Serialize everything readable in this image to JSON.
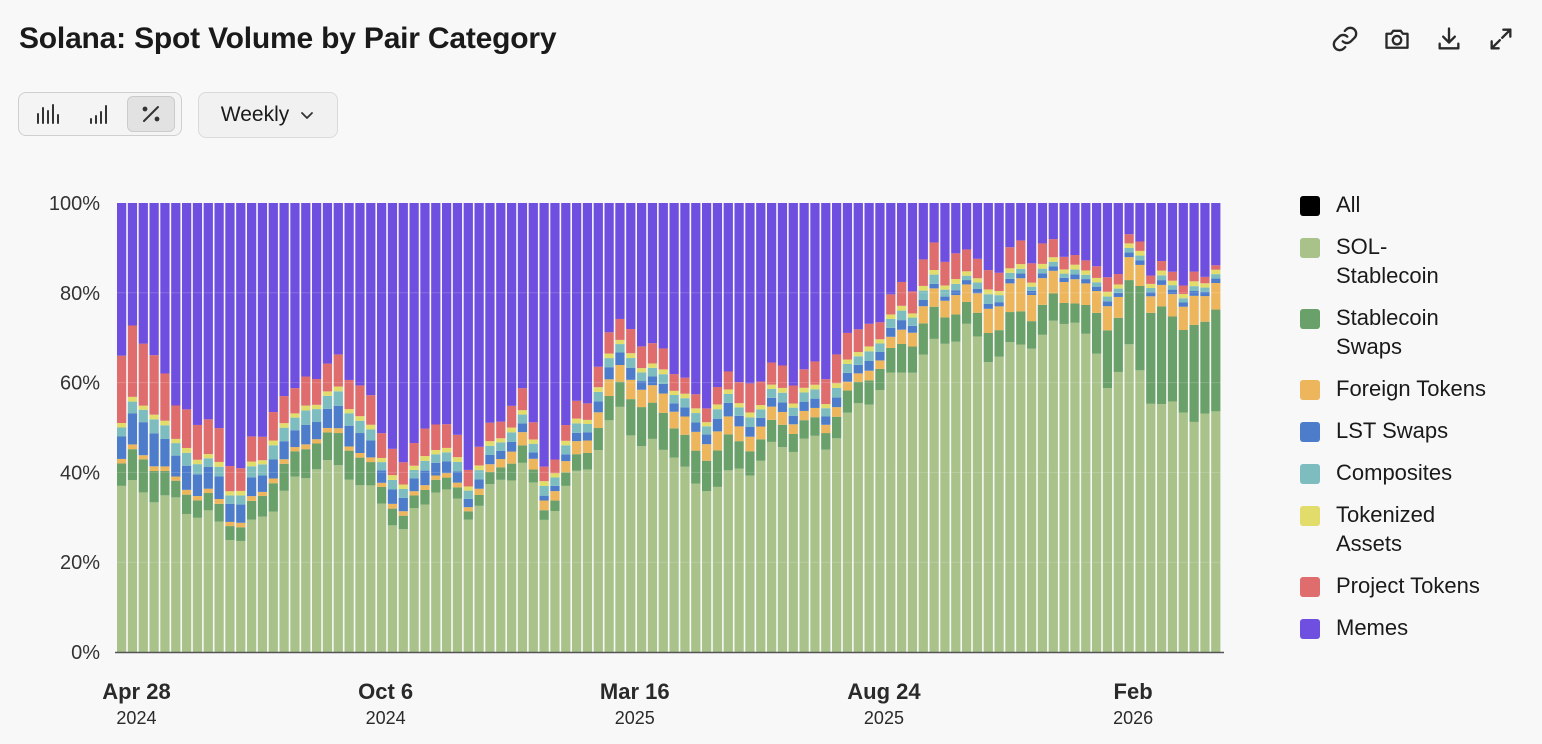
{
  "header": {
    "title": "Solana: Spot Volume by Pair Category",
    "actions": [
      {
        "name": "link-icon"
      },
      {
        "name": "camera-icon"
      },
      {
        "name": "download-icon"
      },
      {
        "name": "expand-icon"
      }
    ]
  },
  "controls": {
    "modes": [
      {
        "name": "bar-chart-icon",
        "active": false
      },
      {
        "name": "stacked-bar-icon",
        "active": false
      },
      {
        "name": "percent-icon",
        "active": true
      }
    ],
    "period_label": "Weekly"
  },
  "legend": [
    {
      "label": "All",
      "color": "#000000"
    },
    {
      "label": "SOL-Stablecoin",
      "color": "#a8c28a"
    },
    {
      "label": "Stablecoin Swaps",
      "color": "#6aa06a"
    },
    {
      "label": "Foreign Tokens",
      "color": "#edb65c"
    },
    {
      "label": "LST Swaps",
      "color": "#4d7ccb"
    },
    {
      "label": "Composites",
      "color": "#7dbdbf"
    },
    {
      "label": "Tokenized Assets",
      "color": "#e2dc6a"
    },
    {
      "label": "Project Tokens",
      "color": "#e06d6d"
    },
    {
      "label": "Memes",
      "color": "#6e4fe0"
    }
  ],
  "chart_data": {
    "type": "bar",
    "stacked": true,
    "normalized": true,
    "interval": "weekly",
    "ylim": [
      0,
      100
    ],
    "y_ticks": [
      "0%",
      "20%",
      "40%",
      "60%",
      "80%",
      "100%"
    ],
    "x_ticks": [
      {
        "label": "Apr 28",
        "year": "2024",
        "index": 1
      },
      {
        "label": "Oct 6",
        "year": "2024",
        "index": 24
      },
      {
        "label": "Mar 16",
        "year": "2025",
        "index": 47
      },
      {
        "label": "Aug 24",
        "year": "2025",
        "index": 70
      },
      {
        "label": "Feb",
        "year": "2026",
        "index": 93
      }
    ],
    "anchors": [
      [
        0,
        37,
        5,
        1,
        5,
        2,
        1,
        15
      ],
      [
        2,
        36,
        8,
        1,
        8,
        3,
        1,
        15
      ],
      [
        5,
        33,
        4,
        1,
        5,
        3,
        1,
        8
      ],
      [
        8,
        30,
        4,
        1,
        5,
        2,
        1,
        8
      ],
      [
        11,
        25,
        3,
        1,
        4,
        2,
        1,
        5
      ],
      [
        14,
        33,
        6,
        1,
        4,
        3,
        1,
        6
      ],
      [
        18,
        42,
        6,
        1,
        4,
        3,
        1,
        6
      ],
      [
        21,
        40,
        7,
        1,
        5,
        3,
        1,
        7
      ],
      [
        24,
        33,
        4,
        1,
        3,
        2,
        1,
        6
      ],
      [
        26,
        27,
        3,
        1,
        3,
        2,
        1,
        5
      ],
      [
        29,
        37,
        3,
        1,
        3,
        2,
        1,
        6
      ],
      [
        32,
        31,
        2,
        1,
        2,
        2,
        1,
        4
      ],
      [
        35,
        38,
        3,
        2,
        2,
        2,
        1,
        4
      ],
      [
        37,
        42,
        4,
        3,
        2,
        2,
        1,
        5
      ],
      [
        39,
        30,
        2,
        2,
        1,
        2,
        1,
        3
      ],
      [
        43,
        42,
        4,
        3,
        2,
        2,
        1,
        4
      ],
      [
        46,
        54,
        6,
        4,
        3,
        2,
        1,
        5
      ],
      [
        48,
        46,
        9,
        4,
        2,
        2,
        1,
        5
      ],
      [
        51,
        45,
        7,
        4,
        2,
        2,
        1,
        4
      ],
      [
        53,
        36,
        7,
        4,
        2,
        2,
        1,
        3
      ],
      [
        56,
        39,
        8,
        4,
        3,
        2,
        1,
        4
      ],
      [
        58,
        41,
        5,
        3,
        2,
        2,
        1,
        6
      ],
      [
        60,
        45,
        5,
        3,
        2,
        2,
        1,
        5
      ],
      [
        63,
        47,
        4,
        2,
        2,
        2,
        1,
        4
      ],
      [
        65,
        46,
        4,
        2,
        2,
        2,
        1,
        6
      ],
      [
        67,
        52,
        5,
        2,
        2,
        2,
        1,
        6
      ],
      [
        70,
        59,
        5,
        2,
        2,
        2,
        1,
        4
      ],
      [
        72,
        62,
        6,
        3,
        2,
        2,
        1,
        5
      ],
      [
        75,
        68,
        7,
        4,
        1,
        2,
        1,
        6
      ],
      [
        78,
        72,
        5,
        4,
        1,
        1,
        1,
        5
      ],
      [
        80,
        66,
        6,
        5,
        1,
        2,
        1,
        4
      ],
      [
        83,
        68,
        7,
        7,
        1,
        1,
        1,
        5
      ],
      [
        86,
        72,
        6,
        5,
        1,
        1,
        1,
        4
      ],
      [
        88,
        75,
        4,
        5,
        1,
        1,
        1,
        2
      ],
      [
        91,
        60,
        12,
        5,
        1,
        1,
        1,
        3
      ],
      [
        93,
        67,
        14,
        5,
        1,
        1,
        1,
        2
      ],
      [
        95,
        57,
        22,
        4,
        1,
        1,
        1,
        2
      ],
      [
        97,
        54,
        19,
        5,
        1,
        1,
        1,
        2
      ],
      [
        99,
        53,
        20,
        6,
        1,
        1,
        1,
        2
      ],
      [
        101,
        52,
        23,
        6,
        1,
        1,
        1,
        1
      ]
    ],
    "series_order": [
      "SOL-Stablecoin",
      "Stablecoin Swaps",
      "Foreign Tokens",
      "LST Swaps",
      "Composites",
      "Tokenized Assets",
      "Project Tokens",
      "Memes"
    ]
  }
}
